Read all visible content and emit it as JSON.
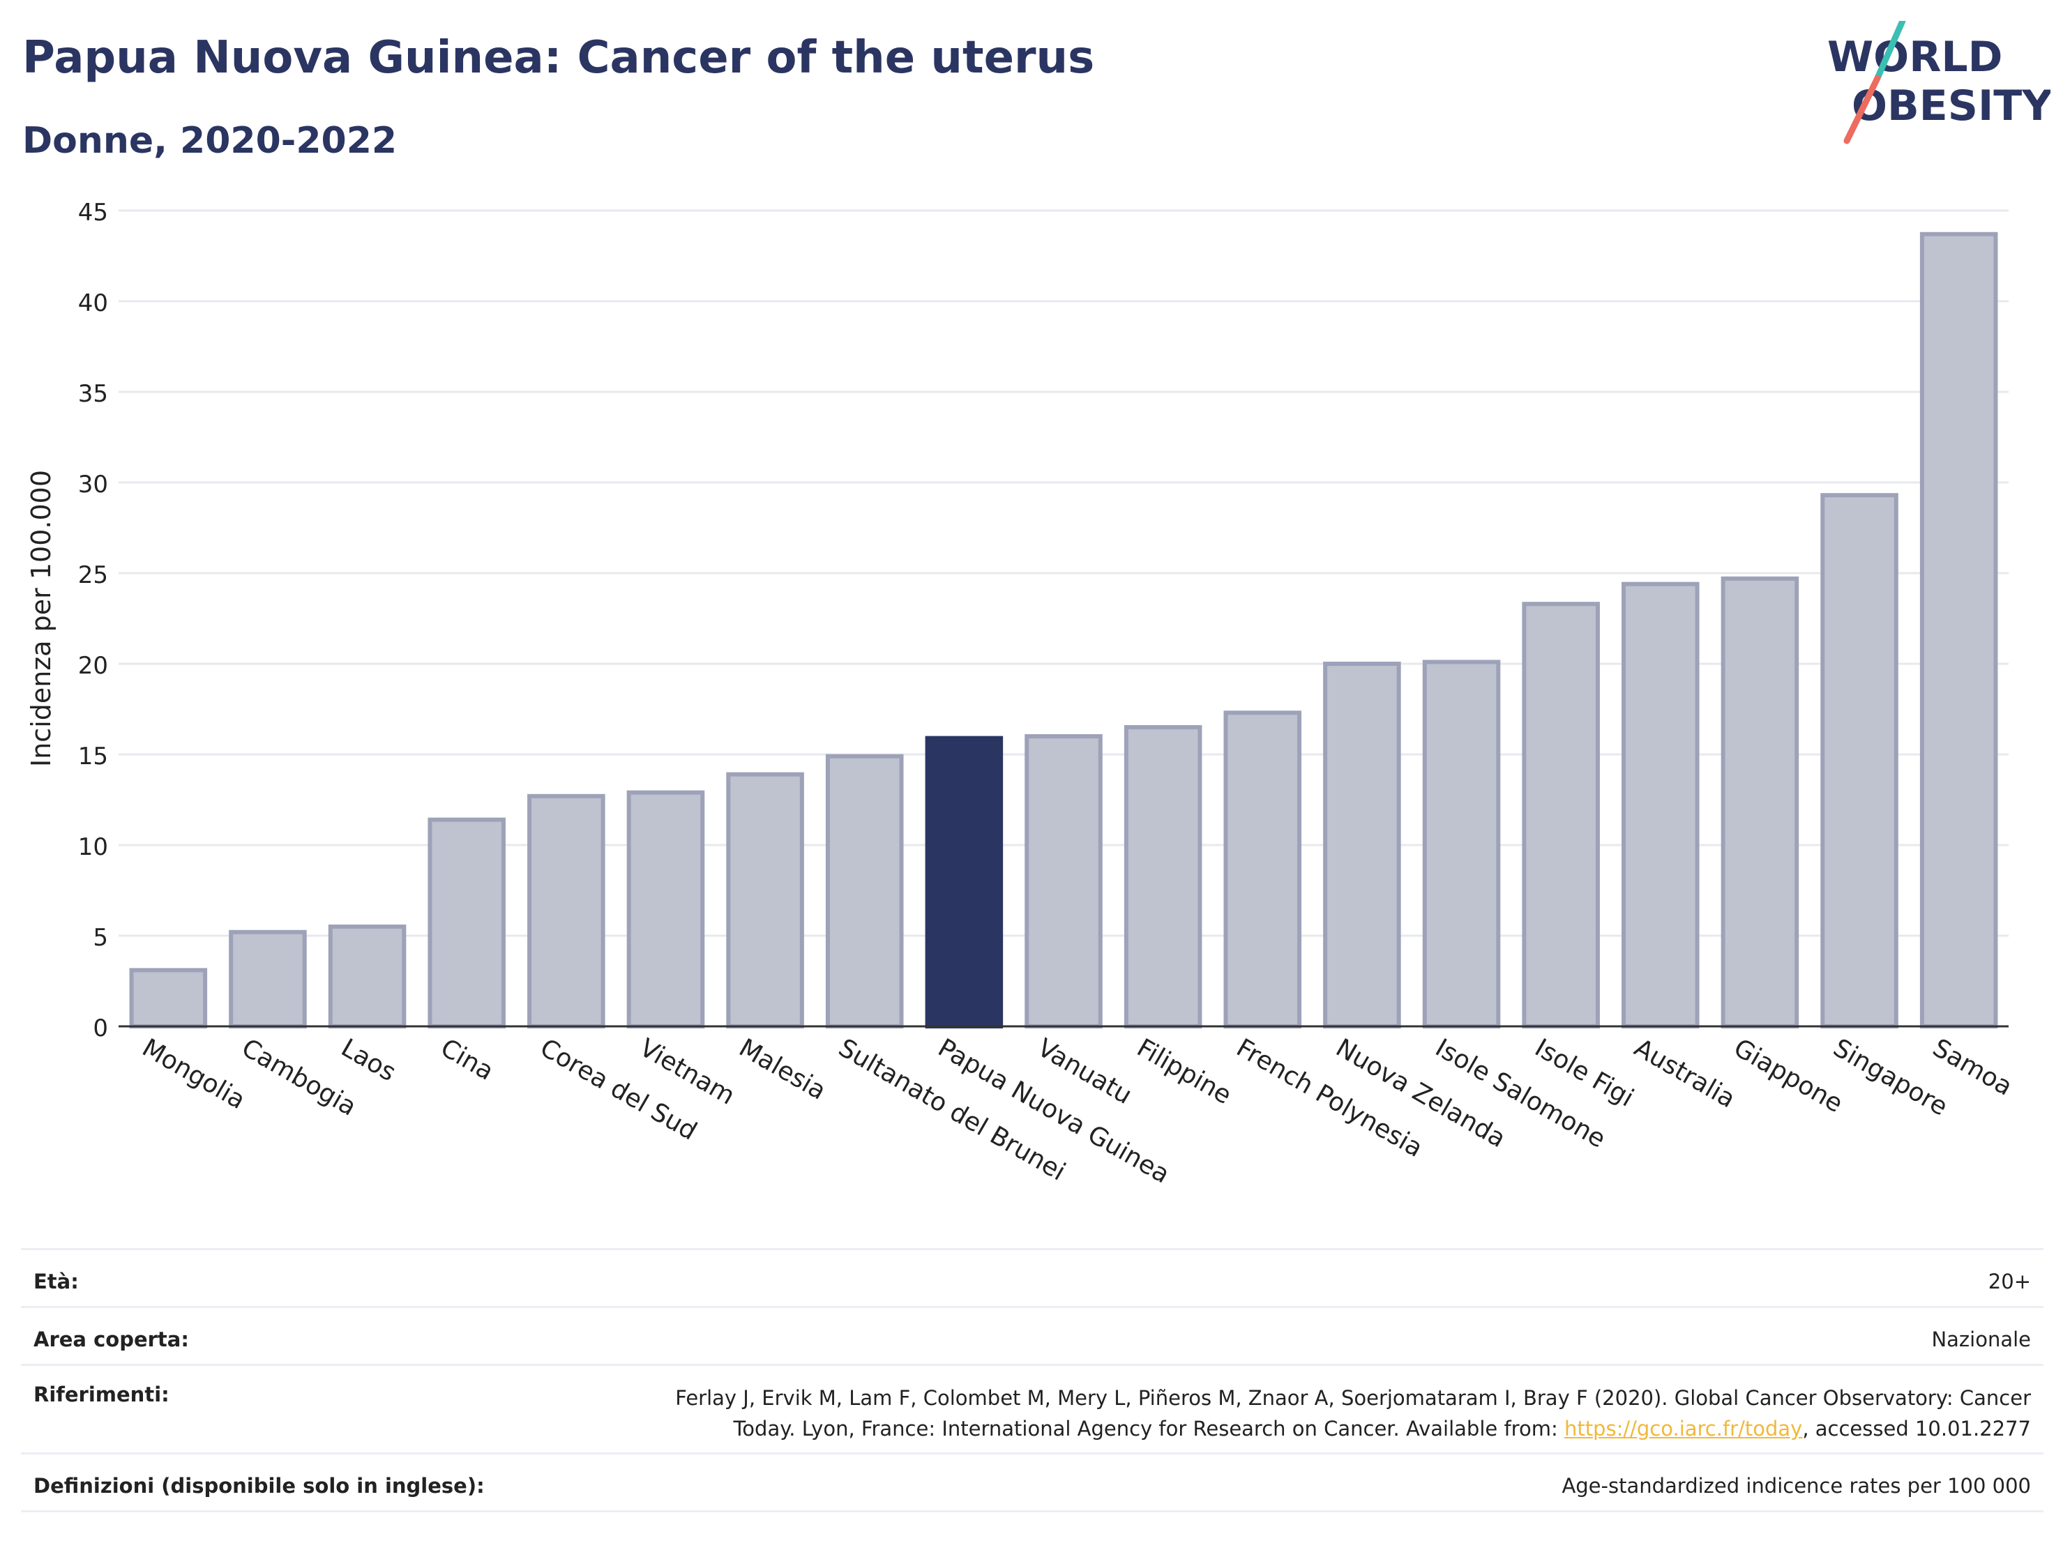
{
  "header": {
    "title": "Papua Nuova Guinea: Cancer of the uterus",
    "subtitle": "Donne, 2020-2022"
  },
  "logo": {
    "line1": "WORLD",
    "line2": "OBESITY"
  },
  "colors": {
    "highlight": "#2b3562",
    "bar": "#bfc2cf",
    "bar_stroke": "#9da2b8",
    "axis": "#333333",
    "grid": "#e8e9ee"
  },
  "chart_data": {
    "type": "bar",
    "ylabel": "Incidenza per 100.000",
    "xlabel": "",
    "ylim": [
      0,
      45
    ],
    "yticks": [
      0,
      5,
      10,
      15,
      20,
      25,
      30,
      35,
      40,
      45
    ],
    "grid": true,
    "categories": [
      "Mongolia",
      "Cambogia",
      "Laos",
      "Cina",
      "Corea del Sud",
      "Vietnam",
      "Malesia",
      "Sultanato del Brunei",
      "Papua Nuova Guinea",
      "Vanuatu",
      "Filippine",
      "French Polynesia",
      "Nuova Zelanda",
      "Isole Salomone",
      "Isole Figi",
      "Australia",
      "Giappone",
      "Singapore",
      "Samoa"
    ],
    "values": [
      3.1,
      5.2,
      5.5,
      11.4,
      12.7,
      12.9,
      13.9,
      14.9,
      15.9,
      16.0,
      16.5,
      17.3,
      20.0,
      20.1,
      23.3,
      24.4,
      24.7,
      29.3,
      43.7
    ],
    "highlight": "Papua Nuova Guinea"
  },
  "meta": [
    {
      "label": "Età:",
      "value": "20+"
    },
    {
      "label": "Area coperta:",
      "value": "Nazionale"
    },
    {
      "label": "Riferimenti:",
      "value_line1": "Ferlay J, Ervik M, Lam F, Colombet M, Mery L, Piñeros M, Znaor A, Soerjomataram I, Bray F (2020). Global Cancer Observatory: Cancer",
      "value_line2_pre": "Today. Lyon, France: International Agency for Research on Cancer. Available from: ",
      "link": "https://gco.iarc.fr/today",
      "value_line2_post": ", accessed 10.01.2277"
    },
    {
      "label": "Definizioni (disponibile solo in inglese):",
      "value": "Age-standardized indicence rates per 100 000"
    }
  ]
}
